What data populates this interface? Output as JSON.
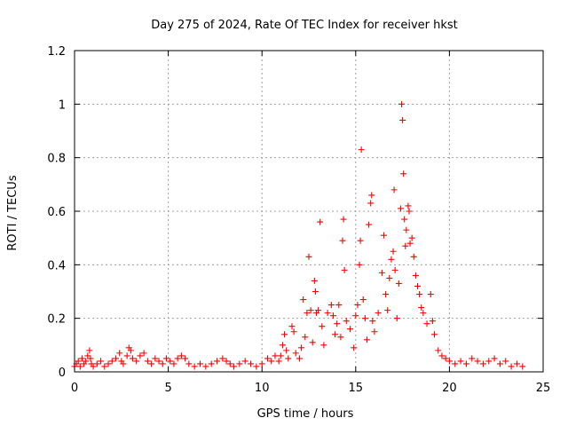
{
  "chart_data": {
    "type": "scatter",
    "title": "Day 275 of 2024, Rate Of TEC Index for receiver hkst",
    "xlabel": "GPS time / hours",
    "ylabel": "ROTI / TECUs",
    "xlim": [
      0,
      25
    ],
    "ylim": [
      0,
      1.2
    ],
    "xticks": [
      0,
      5,
      10,
      15,
      20,
      25
    ],
    "yticks": [
      0,
      0.2,
      0.4,
      0.6,
      0.8,
      1,
      1.2
    ],
    "xtick_labels": [
      "0",
      "5",
      "10",
      "15",
      "20",
      "25"
    ],
    "ytick_labels": [
      "0",
      "0.2",
      "0.4",
      "0.6",
      "0.8",
      "1",
      "1.2"
    ],
    "grid": true,
    "marker": "+",
    "color": "#ff0000",
    "series": [
      {
        "points": [
          [
            0.0,
            0.02
          ],
          [
            0.1,
            0.03
          ],
          [
            0.2,
            0.04
          ],
          [
            0.3,
            0.02
          ],
          [
            0.4,
            0.05
          ],
          [
            0.5,
            0.03
          ],
          [
            0.6,
            0.04
          ],
          [
            0.7,
            0.06
          ],
          [
            0.8,
            0.08
          ],
          [
            0.85,
            0.05
          ],
          [
            0.9,
            0.03
          ],
          [
            1.0,
            0.02
          ],
          [
            1.2,
            0.03
          ],
          [
            1.4,
            0.04
          ],
          [
            1.6,
            0.02
          ],
          [
            1.8,
            0.03
          ],
          [
            2.0,
            0.04
          ],
          [
            2.2,
            0.05
          ],
          [
            2.4,
            0.07
          ],
          [
            2.5,
            0.04
          ],
          [
            2.6,
            0.03
          ],
          [
            2.8,
            0.06
          ],
          [
            2.9,
            0.09
          ],
          [
            3.0,
            0.08
          ],
          [
            3.1,
            0.05
          ],
          [
            3.3,
            0.04
          ],
          [
            3.5,
            0.06
          ],
          [
            3.7,
            0.07
          ],
          [
            3.9,
            0.04
          ],
          [
            4.1,
            0.03
          ],
          [
            4.3,
            0.05
          ],
          [
            4.5,
            0.04
          ],
          [
            4.7,
            0.03
          ],
          [
            4.9,
            0.05
          ],
          [
            5.1,
            0.04
          ],
          [
            5.3,
            0.03
          ],
          [
            5.5,
            0.05
          ],
          [
            5.7,
            0.06
          ],
          [
            5.9,
            0.05
          ],
          [
            6.1,
            0.03
          ],
          [
            6.4,
            0.02
          ],
          [
            6.7,
            0.03
          ],
          [
            7.0,
            0.02
          ],
          [
            7.3,
            0.03
          ],
          [
            7.6,
            0.04
          ],
          [
            7.9,
            0.05
          ],
          [
            8.1,
            0.04
          ],
          [
            8.3,
            0.03
          ],
          [
            8.5,
            0.02
          ],
          [
            8.8,
            0.03
          ],
          [
            9.1,
            0.04
          ],
          [
            9.4,
            0.03
          ],
          [
            9.7,
            0.02
          ],
          [
            10.0,
            0.03
          ],
          [
            10.3,
            0.05
          ],
          [
            10.5,
            0.04
          ],
          [
            10.7,
            0.06
          ],
          [
            10.9,
            0.04
          ],
          [
            11.0,
            0.06
          ],
          [
            11.1,
            0.1
          ],
          [
            11.2,
            0.14
          ],
          [
            11.3,
            0.08
          ],
          [
            11.4,
            0.05
          ],
          [
            11.6,
            0.17
          ],
          [
            11.7,
            0.15
          ],
          [
            11.8,
            0.07
          ],
          [
            12.0,
            0.05
          ],
          [
            12.1,
            0.09
          ],
          [
            12.2,
            0.27
          ],
          [
            12.3,
            0.13
          ],
          [
            12.4,
            0.22
          ],
          [
            12.5,
            0.43
          ],
          [
            12.6,
            0.23
          ],
          [
            12.7,
            0.11
          ],
          [
            12.8,
            0.34
          ],
          [
            12.85,
            0.3
          ],
          [
            12.9,
            0.22
          ],
          [
            13.0,
            0.23
          ],
          [
            13.1,
            0.56
          ],
          [
            13.2,
            0.17
          ],
          [
            13.3,
            0.1
          ],
          [
            13.5,
            0.22
          ],
          [
            13.7,
            0.25
          ],
          [
            13.8,
            0.21
          ],
          [
            13.9,
            0.14
          ],
          [
            14.0,
            0.18
          ],
          [
            14.1,
            0.25
          ],
          [
            14.2,
            0.13
          ],
          [
            14.3,
            0.49
          ],
          [
            14.35,
            0.57
          ],
          [
            14.4,
            0.38
          ],
          [
            14.5,
            0.19
          ],
          [
            14.7,
            0.16
          ],
          [
            14.9,
            0.09
          ],
          [
            15.0,
            0.21
          ],
          [
            15.1,
            0.25
          ],
          [
            15.2,
            0.4
          ],
          [
            15.25,
            0.49
          ],
          [
            15.3,
            0.83
          ],
          [
            15.4,
            0.27
          ],
          [
            15.5,
            0.2
          ],
          [
            15.6,
            0.12
          ],
          [
            15.7,
            0.55
          ],
          [
            15.8,
            0.63
          ],
          [
            15.85,
            0.66
          ],
          [
            15.9,
            0.19
          ],
          [
            16.0,
            0.15
          ],
          [
            16.2,
            0.22
          ],
          [
            16.4,
            0.37
          ],
          [
            16.5,
            0.51
          ],
          [
            16.6,
            0.29
          ],
          [
            16.7,
            0.23
          ],
          [
            16.8,
            0.35
          ],
          [
            16.9,
            0.42
          ],
          [
            17.0,
            0.45
          ],
          [
            17.05,
            0.68
          ],
          [
            17.1,
            0.38
          ],
          [
            17.2,
            0.2
          ],
          [
            17.3,
            0.33
          ],
          [
            17.4,
            0.61
          ],
          [
            17.45,
            1.0
          ],
          [
            17.5,
            0.94
          ],
          [
            17.55,
            0.74
          ],
          [
            17.6,
            0.57
          ],
          [
            17.65,
            0.47
          ],
          [
            17.7,
            0.53
          ],
          [
            17.8,
            0.62
          ],
          [
            17.85,
            0.6
          ],
          [
            17.9,
            0.48
          ],
          [
            18.0,
            0.5
          ],
          [
            18.1,
            0.43
          ],
          [
            18.2,
            0.36
          ],
          [
            18.3,
            0.32
          ],
          [
            18.4,
            0.29
          ],
          [
            18.5,
            0.24
          ],
          [
            18.6,
            0.22
          ],
          [
            18.8,
            0.18
          ],
          [
            19.0,
            0.29
          ],
          [
            19.1,
            0.19
          ],
          [
            19.2,
            0.14
          ],
          [
            19.4,
            0.08
          ],
          [
            19.6,
            0.06
          ],
          [
            19.8,
            0.05
          ],
          [
            20.0,
            0.04
          ],
          [
            20.3,
            0.03
          ],
          [
            20.6,
            0.04
          ],
          [
            20.9,
            0.03
          ],
          [
            21.2,
            0.05
          ],
          [
            21.5,
            0.04
          ],
          [
            21.8,
            0.03
          ],
          [
            22.1,
            0.04
          ],
          [
            22.4,
            0.05
          ],
          [
            22.7,
            0.03
          ],
          [
            23.0,
            0.04
          ],
          [
            23.3,
            0.02
          ],
          [
            23.6,
            0.03
          ],
          [
            23.9,
            0.02
          ]
        ]
      }
    ]
  }
}
